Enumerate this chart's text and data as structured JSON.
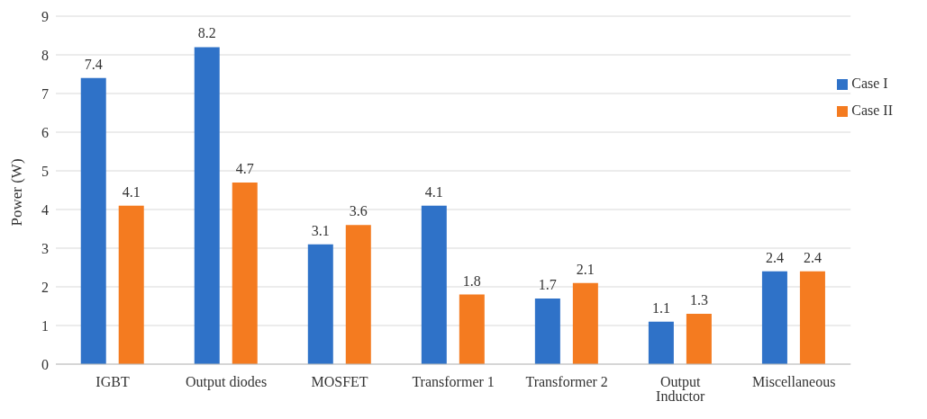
{
  "chart_data": {
    "type": "bar",
    "ylabel": "Power (W)",
    "categories": [
      "IGBT",
      "Output diodes",
      "MOSFET",
      "Transformer 1",
      "Transformer 2",
      "Output Inductor",
      "Miscellaneous"
    ],
    "series": [
      {
        "name": "Case I",
        "color": "#2f72c8",
        "values": [
          7.4,
          8.2,
          3.1,
          4.1,
          1.7,
          1.1,
          2.4
        ]
      },
      {
        "name": "Case II",
        "color": "#f47b20",
        "values": [
          4.1,
          4.7,
          3.6,
          1.8,
          2.1,
          1.3,
          2.4
        ]
      }
    ],
    "ylim": [
      0,
      9
    ],
    "yticks": [
      0,
      1,
      2,
      3,
      4,
      5,
      6,
      7,
      8,
      9
    ],
    "grid": "y",
    "legend": "top right",
    "data_labels": true
  }
}
